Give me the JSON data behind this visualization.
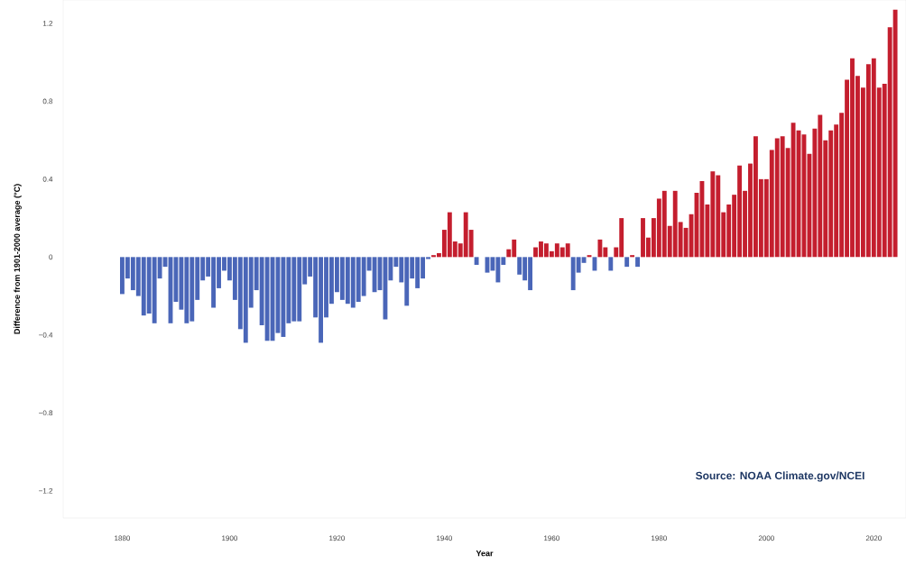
{
  "chart_data": {
    "type": "bar",
    "xlabel": "Year",
    "ylabel": "Difference from 1901-2000 average (°C)",
    "annotations": [
      "Source: NOAA Climate.gov/NCEI"
    ],
    "x": [
      1880,
      1881,
      1882,
      1883,
      1884,
      1885,
      1886,
      1887,
      1888,
      1889,
      1890,
      1891,
      1892,
      1893,
      1894,
      1895,
      1896,
      1897,
      1898,
      1899,
      1900,
      1901,
      1902,
      1903,
      1904,
      1905,
      1906,
      1907,
      1908,
      1909,
      1910,
      1911,
      1912,
      1913,
      1914,
      1915,
      1916,
      1917,
      1918,
      1919,
      1920,
      1921,
      1922,
      1923,
      1924,
      1925,
      1926,
      1927,
      1928,
      1929,
      1930,
      1931,
      1932,
      1933,
      1934,
      1935,
      1936,
      1937,
      1938,
      1939,
      1940,
      1941,
      1942,
      1943,
      1944,
      1945,
      1946,
      1947,
      1948,
      1949,
      1950,
      1951,
      1952,
      1953,
      1954,
      1955,
      1956,
      1957,
      1958,
      1959,
      1960,
      1961,
      1962,
      1963,
      1964,
      1965,
      1966,
      1967,
      1968,
      1969,
      1970,
      1971,
      1972,
      1973,
      1974,
      1975,
      1976,
      1977,
      1978,
      1979,
      1980,
      1981,
      1982,
      1983,
      1984,
      1985,
      1986,
      1987,
      1988,
      1989,
      1990,
      1991,
      1992,
      1993,
      1994,
      1995,
      1996,
      1997,
      1998,
      1999,
      2000,
      2001,
      2002,
      2003,
      2004,
      2005,
      2006,
      2007,
      2008,
      2009,
      2010,
      2011,
      2012,
      2013,
      2014,
      2015,
      2016,
      2017,
      2018,
      2019,
      2020,
      2021,
      2022,
      2023,
      2024
    ],
    "values": [
      -0.19,
      -0.11,
      -0.17,
      -0.2,
      -0.3,
      -0.29,
      -0.34,
      -0.11,
      -0.05,
      -0.34,
      -0.23,
      -0.27,
      -0.34,
      -0.33,
      -0.22,
      -0.12,
      -0.1,
      -0.26,
      -0.16,
      -0.07,
      -0.12,
      -0.22,
      -0.37,
      -0.44,
      -0.26,
      -0.17,
      -0.35,
      -0.43,
      -0.43,
      -0.39,
      -0.41,
      -0.34,
      -0.33,
      -0.33,
      -0.14,
      -0.1,
      -0.31,
      -0.44,
      -0.31,
      -0.24,
      -0.18,
      -0.22,
      -0.24,
      -0.26,
      -0.23,
      -0.2,
      -0.07,
      -0.18,
      -0.17,
      -0.32,
      -0.12,
      -0.05,
      -0.13,
      -0.25,
      -0.11,
      -0.16,
      -0.11,
      -0.01,
      0.01,
      0.02,
      0.14,
      0.23,
      0.08,
      0.07,
      0.23,
      0.14,
      -0.04,
      0.0,
      -0.08,
      -0.07,
      -0.13,
      -0.04,
      0.04,
      0.09,
      -0.09,
      -0.12,
      -0.17,
      0.05,
      0.08,
      0.07,
      0.03,
      0.07,
      0.05,
      0.07,
      -0.17,
      -0.08,
      -0.03,
      0.01,
      -0.07,
      0.09,
      0.05,
      -0.07,
      0.05,
      0.2,
      -0.05,
      0.01,
      -0.05,
      0.2,
      0.1,
      0.2,
      0.3,
      0.34,
      0.16,
      0.34,
      0.18,
      0.15,
      0.22,
      0.33,
      0.39,
      0.27,
      0.44,
      0.42,
      0.23,
      0.27,
      0.32,
      0.47,
      0.34,
      0.48,
      0.62,
      0.4,
      0.4,
      0.55,
      0.61,
      0.62,
      0.56,
      0.69,
      0.65,
      0.63,
      0.53,
      0.66,
      0.73,
      0.6,
      0.65,
      0.68,
      0.74,
      0.91,
      1.02,
      0.93,
      0.87,
      0.99,
      1.02,
      0.87,
      0.89,
      1.18,
      1.27
    ],
    "colors": [
      "#4a66b8",
      "#4a66b8",
      "#4a66b8",
      "#4a66b8",
      "#4a66b8",
      "#4a66b8",
      "#4a66b8",
      "#4a66b8",
      "#4a66b8",
      "#4a66b8",
      "#4a66b8",
      "#4a66b8",
      "#4a66b8",
      "#4a66b8",
      "#4a66b8",
      "#4a66b8",
      "#4a66b8",
      "#4a66b8",
      "#4a66b8",
      "#4a66b8",
      "#4a66b8",
      "#4a66b8",
      "#4a66b8",
      "#4a66b8",
      "#4a66b8",
      "#4a66b8",
      "#4a66b8",
      "#4a66b8",
      "#4a66b8",
      "#4a66b8",
      "#4a66b8",
      "#4a66b8",
      "#4a66b8",
      "#4a66b8",
      "#4a66b8",
      "#4a66b8",
      "#4a66b8",
      "#4a66b8",
      "#4a66b8",
      "#4a66b8",
      "#4a66b8",
      "#4a66b8",
      "#4a66b8",
      "#4a66b8",
      "#4a66b8",
      "#4a66b8",
      "#4a66b8",
      "#4a66b8",
      "#4a66b8",
      "#4a66b8",
      "#4a66b8",
      "#4a66b8",
      "#4a66b8",
      "#4a66b8",
      "#4a66b8",
      "#4a66b8",
      "#4a66b8",
      "#4a66b8",
      "#c41e2e",
      "#c41e2e",
      "#c41e2e",
      "#c41e2e",
      "#c41e2e",
      "#c41e2e",
      "#c41e2e",
      "#c41e2e",
      "#4a66b8",
      "#c41e2e",
      "#4a66b8",
      "#4a66b8",
      "#4a66b8",
      "#4a66b8",
      "#c41e2e",
      "#c41e2e",
      "#4a66b8",
      "#4a66b8",
      "#4a66b8",
      "#c41e2e",
      "#c41e2e",
      "#c41e2e",
      "#c41e2e",
      "#c41e2e",
      "#c41e2e",
      "#c41e2e",
      "#4a66b8",
      "#4a66b8",
      "#4a66b8",
      "#c41e2e",
      "#4a66b8",
      "#c41e2e",
      "#c41e2e",
      "#4a66b8",
      "#c41e2e",
      "#c41e2e",
      "#4a66b8",
      "#c41e2e",
      "#4a66b8",
      "#c41e2e",
      "#c41e2e",
      "#c41e2e",
      "#c41e2e",
      "#c41e2e",
      "#c41e2e",
      "#c41e2e",
      "#c41e2e",
      "#c41e2e",
      "#c41e2e",
      "#c41e2e",
      "#c41e2e",
      "#c41e2e",
      "#c41e2e",
      "#c41e2e",
      "#c41e2e",
      "#c41e2e",
      "#c41e2e",
      "#c41e2e",
      "#c41e2e",
      "#c41e2e",
      "#c41e2e",
      "#c41e2e",
      "#c41e2e",
      "#c41e2e",
      "#c41e2e",
      "#c41e2e",
      "#c41e2e",
      "#c41e2e",
      "#c41e2e",
      "#c41e2e",
      "#c41e2e",
      "#c41e2e",
      "#c41e2e",
      "#c41e2e",
      "#c41e2e",
      "#c41e2e",
      "#c41e2e",
      "#c41e2e",
      "#c41e2e",
      "#c41e2e",
      "#c41e2e",
      "#c41e2e",
      "#c41e2e",
      "#c41e2e",
      "#c41e2e",
      "#c41e2e",
      "#c41e2e"
    ],
    "xticks": [
      1880,
      1900,
      1920,
      1940,
      1960,
      1980,
      2000,
      2020
    ],
    "yticks": [
      1.2,
      0.8,
      0.4,
      0,
      {
        "value": -0.4,
        "label": "−0.4"
      },
      {
        "value": -0.8,
        "label": "−0.8"
      },
      {
        "value": -1.2,
        "label": "−1.2"
      }
    ],
    "xlim": [
      1869,
      2026
    ],
    "ylim": [
      -1.34,
      1.32
    ]
  }
}
